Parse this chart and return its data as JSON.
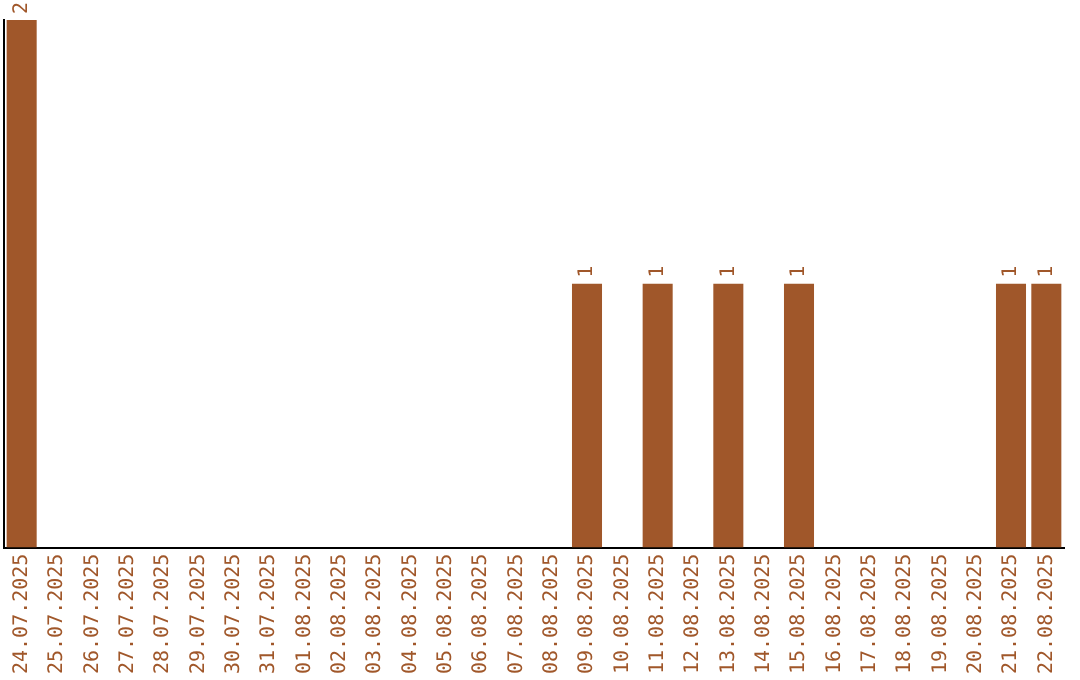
{
  "chart_data": {
    "type": "bar",
    "categories": [
      "24.07.2025",
      "25.07.2025",
      "26.07.2025",
      "27.07.2025",
      "28.07.2025",
      "29.07.2025",
      "30.07.2025",
      "31.07.2025",
      "01.08.2025",
      "02.08.2025",
      "03.08.2025",
      "04.08.2025",
      "05.08.2025",
      "06.08.2025",
      "07.08.2025",
      "08.08.2025",
      "09.08.2025",
      "10.08.2025",
      "11.08.2025",
      "12.08.2025",
      "13.08.2025",
      "14.08.2025",
      "15.08.2025",
      "16.08.2025",
      "17.08.2025",
      "18.08.2025",
      "19.08.2025",
      "20.08.2025",
      "21.08.2025",
      "22.08.2025"
    ],
    "values": [
      2,
      0,
      0,
      0,
      0,
      0,
      0,
      0,
      0,
      0,
      0,
      0,
      0,
      0,
      0,
      0,
      1,
      0,
      1,
      0,
      1,
      0,
      1,
      0,
      0,
      0,
      0,
      0,
      1,
      1
    ],
    "value_labels": [
      "2",
      null,
      null,
      null,
      null,
      null,
      null,
      null,
      null,
      null,
      null,
      null,
      null,
      null,
      null,
      null,
      "1",
      null,
      "1",
      null,
      "1",
      null,
      "1",
      null,
      null,
      null,
      null,
      null,
      "1",
      "1"
    ],
    "color": "#a0572a",
    "ylim": [
      0,
      2
    ],
    "tick_labels": "x",
    "grid": false,
    "legend": false
  }
}
